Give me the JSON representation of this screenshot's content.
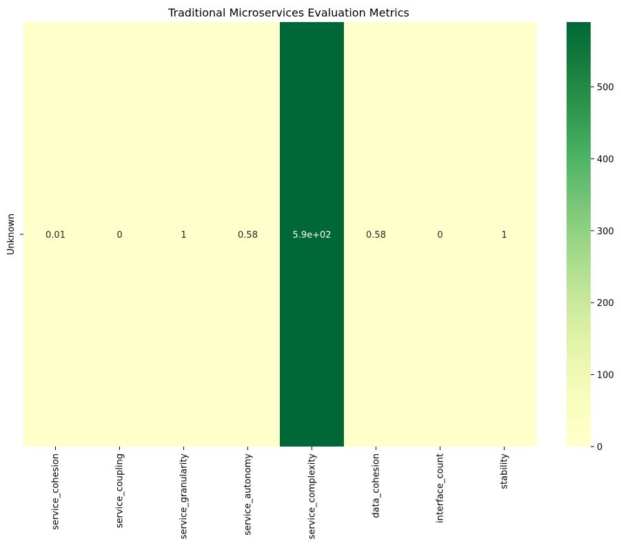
{
  "chart_data": {
    "type": "heatmap",
    "title": "Traditional Microservices Evaluation Metrics",
    "xlabel": "",
    "ylabel": "",
    "rows": [
      "Unknown"
    ],
    "columns": [
      "service_cohesion",
      "service_coupling",
      "service_granularity",
      "service_autonomy",
      "service_complexity",
      "data_cohesion",
      "interface_count",
      "stability"
    ],
    "values": [
      [
        0.01,
        0,
        1,
        0.58,
        590,
        0.58,
        0,
        1
      ]
    ],
    "annotations": [
      [
        "0.01",
        "0",
        "1",
        "0.58",
        "5.9e+02",
        "0.58",
        "0",
        "1"
      ]
    ],
    "colormap": "YlGn",
    "colorbar": {
      "range": [
        0,
        590
      ],
      "ticks": [
        0,
        100,
        200,
        300,
        400,
        500
      ],
      "tick_labels": [
        "0",
        "100",
        "200",
        "300",
        "400",
        "500"
      ]
    },
    "colors": {
      "low": "#ffffcc",
      "high": "#006837"
    }
  }
}
